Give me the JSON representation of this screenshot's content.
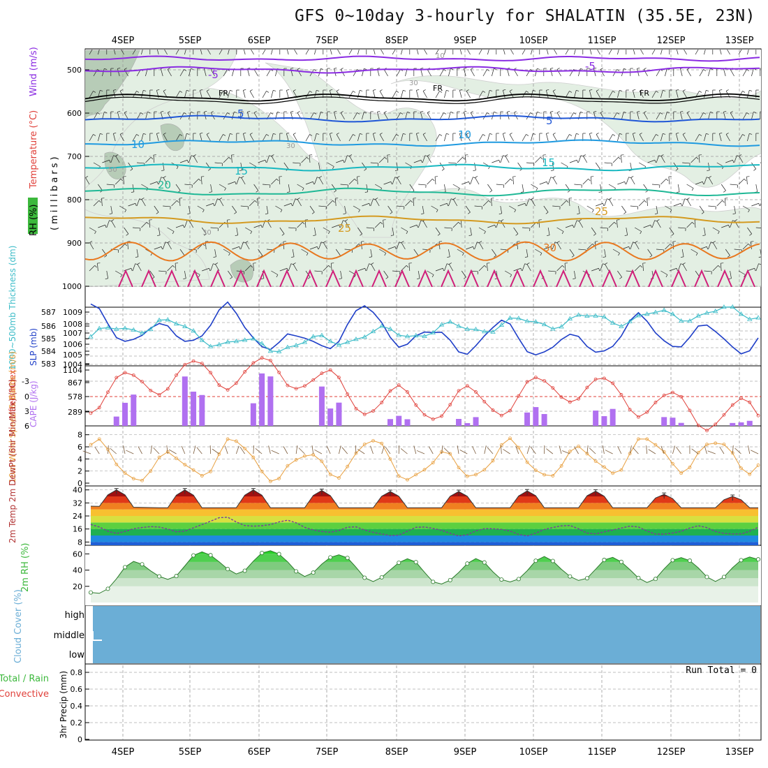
{
  "title": "GFS 0~10day 3-hourly for SHALATIN (35.5E, 23N)",
  "date_labels": [
    "4SEP",
    "5SEP",
    "6SEP",
    "7SEP",
    "8SEP",
    "9SEP",
    "10SEP",
    "11SEP",
    "12SEP",
    "13SEP"
  ],
  "panels": {
    "upper": {
      "ylabel_rh": "RH (%)",
      "ylabel_temp": "Temperature (°C)",
      "ylabel_wind": "Wind (m/s)",
      "ylabel_units": "(millibars)",
      "yticks": [
        "500",
        "600",
        "700",
        "800",
        "900",
        "1000"
      ],
      "contour_labels": {
        "m5": "-5",
        "fr": "FR",
        "p5": "5",
        "p10": "10",
        "p15": "15",
        "p20": "20",
        "p25": "25",
        "p30": "30",
        "rh10": "10",
        "rh30": "30",
        "rh50": "50"
      }
    },
    "slp": {
      "ylabel_left": "1000~500mb Thickness (dm)",
      "ylabel_right": "SLP (mb)",
      "yticks_left": [
        "587",
        "586",
        "585",
        "584",
        "583"
      ],
      "yticks_right": [
        "1009",
        "1008",
        "1007",
        "1006",
        "1005",
        "1004"
      ]
    },
    "cape": {
      "ylabel_left": "Lifted Index",
      "ylabel_right": "CAPE (J/kg)",
      "yticks_left": [
        "-3",
        "0",
        "3",
        "6"
      ],
      "yticks_right": [
        "1104",
        "867",
        "578",
        "289"
      ]
    },
    "wind10": {
      "ylabel": "10m Wind Speed & Barbs (m/s)",
      "yticks": [
        "8",
        "6",
        "4",
        "2",
        "0"
      ]
    },
    "temp2m": {
      "ylabel": "2m Temp 2m DewPt (6hr Min/Max) (°C)",
      "yticks": [
        "40",
        "32",
        "24",
        "16",
        "8"
      ]
    },
    "rh2m": {
      "ylabel": "2m RH (%)",
      "yticks": [
        "60",
        "40",
        "20"
      ]
    },
    "cloud": {
      "ylabel": "Cloud Cover (%)",
      "levels": [
        "high",
        "middle",
        "low"
      ]
    },
    "precip": {
      "ylabel_left": "Total / Rain",
      "ylabel_left2": "Convective",
      "ylabel": "3hr Precip (mm)",
      "yticks": [
        "0.8",
        "0.6",
        "0.4",
        "0.2",
        "0"
      ],
      "run_total": "Run Total = 0"
    }
  },
  "colors": {
    "slp": "#1f3fc8",
    "thickness": "#3cbcc8",
    "lifted_index": "#e0403a",
    "cape": "#b070f0",
    "wind_speed": "#e8a040",
    "rh2m": "#3cb83c",
    "cloud": "#6baed6",
    "temp_neg": "#8a2be2",
    "fr": "#000000"
  },
  "chart_data": [
    {
      "type": "line",
      "title": "SLP and 1000-500mb Thickness",
      "x": [
        "4SEP",
        "5SEP",
        "6SEP",
        "7SEP",
        "8SEP",
        "9SEP",
        "10SEP",
        "11SEP",
        "12SEP",
        "13SEP"
      ],
      "series": [
        {
          "name": "SLP (mb)",
          "values": [
            1008.5,
            1006.5,
            1008.5,
            1005.5,
            1008.5,
            1006.0,
            1007.0,
            1005.5,
            1007.5,
            1006.5
          ]
        },
        {
          "name": "1000~500mb Thickness (dm)",
          "values": [
            584.8,
            585.8,
            584.3,
            584.2,
            584.9,
            585.2,
            585.6,
            585.9,
            586.1,
            586.4
          ]
        }
      ],
      "ylim_left": [
        583,
        587
      ],
      "ylim_right": [
        1004,
        1009.5
      ]
    },
    {
      "type": "bar",
      "title": "Lifted Index & CAPE",
      "x": [
        "4SEP",
        "5SEP",
        "6SEP",
        "7SEP",
        "8SEP",
        "9SEP",
        "10SEP",
        "11SEP",
        "12SEP",
        "13SEP"
      ],
      "series": [
        {
          "name": "CAPE (J/kg)",
          "values": [
            200,
            900,
            1104,
            1104,
            300,
            100,
            250,
            500,
            250,
            100
          ]
        },
        {
          "name": "Lifted Index",
          "values": [
            0.5,
            -3.5,
            -4.5,
            -4.5,
            1,
            2,
            1,
            -2,
            1,
            4
          ]
        }
      ],
      "ylim_cape": [
        0,
        1104
      ],
      "ylim_li": [
        -4.8,
        6
      ]
    },
    {
      "type": "line",
      "title": "10m Wind Speed",
      "x": [
        "4SEP",
        "5SEP",
        "6SEP",
        "7SEP",
        "8SEP",
        "9SEP",
        "10SEP",
        "11SEP",
        "12SEP",
        "13SEP"
      ],
      "series": [
        {
          "name": "Speed (m/s)",
          "values": [
            4.5,
            2,
            5,
            2,
            5,
            2,
            4.5,
            3,
            5,
            4.5
          ]
        }
      ],
      "ylim": [
        0,
        9
      ]
    },
    {
      "type": "area",
      "title": "2m Temperature and DewPoint",
      "x": [
        "4SEP",
        "5SEP",
        "6SEP",
        "7SEP",
        "8SEP",
        "9SEP",
        "10SEP",
        "11SEP",
        "12SEP",
        "13SEP"
      ],
      "series": [
        {
          "name": "2m Temp max (°C)",
          "values": [
            40,
            40,
            40,
            40,
            39,
            39,
            39,
            40,
            38,
            36
          ]
        },
        {
          "name": "2m Temp min (°C)",
          "values": [
            30,
            29,
            29,
            29,
            29,
            29,
            29,
            29,
            29,
            29
          ]
        },
        {
          "name": "2m DewPt (°C)",
          "values": [
            17,
            15,
            21,
            18,
            14,
            15,
            14,
            16,
            15,
            15
          ]
        }
      ],
      "ylim": [
        6,
        42
      ]
    },
    {
      "type": "area",
      "title": "2m RH",
      "x": [
        "4SEP",
        "5SEP",
        "6SEP",
        "7SEP",
        "8SEP",
        "9SEP",
        "10SEP",
        "11SEP",
        "12SEP",
        "13SEP"
      ],
      "series": [
        {
          "name": "2m RH (%)",
          "values": [
            38,
            57,
            66,
            64,
            57,
            52,
            54,
            57,
            55,
            57
          ]
        }
      ],
      "ylim": [
        0,
        68
      ]
    },
    {
      "type": "bar",
      "title": "3hr Precip",
      "x": [
        "4SEP",
        "5SEP",
        "6SEP",
        "7SEP",
        "8SEP",
        "9SEP",
        "10SEP",
        "11SEP",
        "12SEP",
        "13SEP"
      ],
      "series": [
        {
          "name": "3hr Precip (mm)",
          "values": [
            0,
            0,
            0,
            0,
            0,
            0,
            0,
            0,
            0,
            0
          ]
        }
      ],
      "ylim": [
        0,
        0.9
      ]
    }
  ]
}
